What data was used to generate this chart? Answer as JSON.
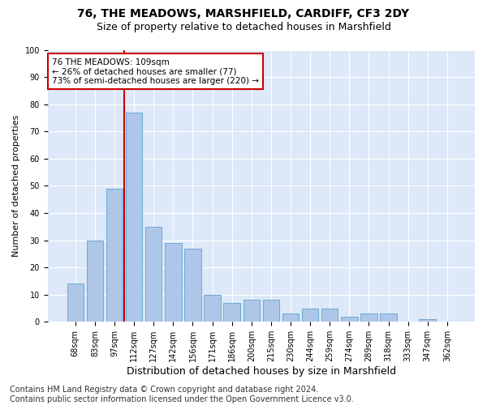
{
  "title": "76, THE MEADOWS, MARSHFIELD, CARDIFF, CF3 2DY",
  "subtitle": "Size of property relative to detached houses in Marshfield",
  "xlabel": "Distribution of detached houses by size in Marshfield",
  "ylabel": "Number of detached properties",
  "categories": [
    "68sqm",
    "83sqm",
    "97sqm",
    "112sqm",
    "127sqm",
    "142sqm",
    "156sqm",
    "171sqm",
    "186sqm",
    "200sqm",
    "215sqm",
    "230sqm",
    "244sqm",
    "259sqm",
    "274sqm",
    "289sqm",
    "318sqm",
    "333sqm",
    "347sqm",
    "362sqm"
  ],
  "values": [
    14,
    30,
    49,
    77,
    35,
    29,
    27,
    10,
    7,
    8,
    8,
    3,
    5,
    5,
    2,
    3,
    3,
    0,
    1,
    0
  ],
  "bar_color": "#aec6e8",
  "bar_edge_color": "#6aaad4",
  "annotation_text": "76 THE MEADOWS: 109sqm\n← 26% of detached houses are smaller (77)\n73% of semi-detached houses are larger (220) →",
  "annotation_box_color": "#ffffff",
  "annotation_box_edge": "#cc0000",
  "annotation_text_size": 7.5,
  "vline_color": "#cc0000",
  "vline_x": 2.5,
  "ylim": [
    0,
    100
  ],
  "yticks": [
    0,
    10,
    20,
    30,
    40,
    50,
    60,
    70,
    80,
    90,
    100
  ],
  "fig_background_color": "#ffffff",
  "plot_bg_color": "#dde8f8",
  "grid_color": "#ffffff",
  "title_fontsize": 10,
  "subtitle_fontsize": 9,
  "ylabel_fontsize": 8,
  "xlabel_fontsize": 9,
  "tick_fontsize": 7,
  "footer_text": "Contains HM Land Registry data © Crown copyright and database right 2024.\nContains public sector information licensed under the Open Government Licence v3.0.",
  "footer_fontsize": 7
}
